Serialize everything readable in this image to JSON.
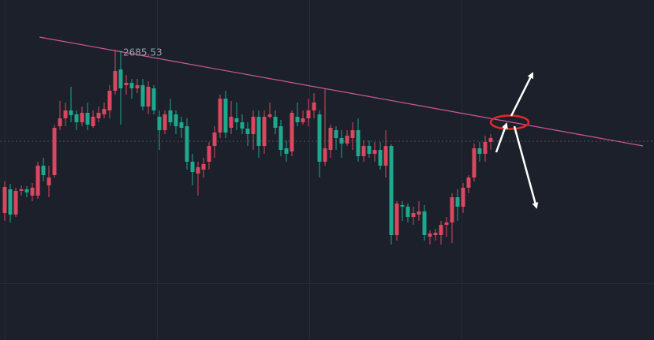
{
  "chart_data": {
    "type": "candlestick",
    "xlim": [
      -0.857,
      117.571
    ],
    "ylim": [
      2317.53,
      2748.53
    ],
    "up_color": "#d9485f",
    "down_color": "#1ea88e",
    "open": [
      2478.53,
      2508.53,
      2476.53,
      2506.53,
      2508.53,
      2500.53,
      2500.53,
      2538.53,
      2513.53,
      2526.53,
      2588.53,
      2598.53,
      2608.53,
      2603.53,
      2593.53,
      2605.53,
      2588.53,
      2598.53,
      2603.53,
      2608.53,
      2633.53,
      2660.53,
      2640.53,
      2643.53,
      2636.53,
      2640.53,
      2613.53,
      2636.53,
      2600.53,
      2583.53,
      2608.53,
      2603.53,
      2593.53,
      2588.53,
      2543.53,
      2528.53,
      2533.53,
      2543.53,
      2563.53,
      2580.53,
      2623.53,
      2586.53,
      2598.53,
      2593.53,
      2585.53,
      2578.53,
      2600.53,
      2563.53,
      2600.53,
      2600.53,
      2588.53,
      2560.53,
      2556.53,
      2600.53,
      2593.53,
      2598.53,
      2608.53,
      2603.53,
      2543.53,
      2558.53,
      2583.53,
      2573.53,
      2566.53,
      2573.53,
      2583.53,
      2550.53,
      2563.53,
      2553.53,
      2558.53,
      2538.53,
      2563.53,
      2450.53,
      2488.53,
      2486.53,
      2473.53,
      2476.53,
      2480.53,
      2448.53,
      2450.53,
      2450.53,
      2463.53,
      2466.53,
      2498.53,
      2486.53,
      2510.53,
      2523.53,
      2560.53,
      2553.53,
      2568.53
    ],
    "high": [
      2518.53,
      2515.53,
      2510.53,
      2513.53,
      2512.53,
      2516.53,
      2543.53,
      2548.53,
      2538.53,
      2590.53,
      2620.53,
      2618.53,
      2638.53,
      2608.53,
      2613.53,
      2618.53,
      2608.53,
      2613.53,
      2618.53,
      2640.53,
      2685.53,
      2683.53,
      2653.53,
      2648.53,
      2648.53,
      2648.53,
      2645.53,
      2640.53,
      2608.53,
      2608.53,
      2623.53,
      2608.53,
      2600.53,
      2598.53,
      2553.53,
      2543.53,
      2548.53,
      2568.53,
      2588.53,
      2628.53,
      2633.53,
      2620.53,
      2618.53,
      2603.53,
      2593.53,
      2608.53,
      2608.53,
      2608.53,
      2618.53,
      2608.53,
      2596.53,
      2570.53,
      2608.53,
      2618.53,
      2608.53,
      2623.53,
      2630.53,
      2608.53,
      2636.53,
      2590.53,
      2588.53,
      2583.53,
      2583.53,
      2593.53,
      2598.53,
      2570.53,
      2570.53,
      2568.53,
      2568.53,
      2583.53,
      2565.53,
      2493.53,
      2493.53,
      2490.53,
      2486.53,
      2493.53,
      2488.53,
      2456.53,
      2458.53,
      2468.53,
      2473.53,
      2503.53,
      2508.53,
      2516.53,
      2526.53,
      2566.53,
      2568.53,
      2576.53,
      2578.53
    ],
    "low": [
      2468.53,
      2466.53,
      2473.53,
      2500.53,
      2498.53,
      2493.53,
      2496.53,
      2518.53,
      2498.53,
      2523.53,
      2583.53,
      2588.53,
      2593.53,
      2583.53,
      2588.53,
      2583.53,
      2586.53,
      2593.53,
      2598.53,
      2598.53,
      2628.53,
      2590.53,
      2628.53,
      2623.53,
      2630.53,
      2608.53,
      2603.53,
      2603.53,
      2558.53,
      2578.53,
      2588.53,
      2578.53,
      2573.53,
      2533.53,
      2513.53,
      2500.53,
      2523.53,
      2533.53,
      2548.53,
      2573.53,
      2573.53,
      2578.53,
      2583.53,
      2578.53,
      2563.53,
      2558.53,
      2548.53,
      2553.53,
      2598.53,
      2578.53,
      2550.53,
      2543.53,
      2550.53,
      2588.53,
      2590.53,
      2588.53,
      2598.53,
      2523.53,
      2538.53,
      2548.53,
      2558.53,
      2548.53,
      2563.53,
      2558.53,
      2543.53,
      2543.53,
      2548.53,
      2543.53,
      2533.53,
      2523.53,
      2438.53,
      2443.53,
      2468.53,
      2466.53,
      2463.53,
      2468.53,
      2443.53,
      2438.53,
      2443.53,
      2438.53,
      2448.53,
      2440.53,
      2468.53,
      2478.53,
      2503.53,
      2518.53,
      2543.53,
      2543.53,
      2558.53
    ],
    "close": [
      2511.53,
      2476.53,
      2506.53,
      2508.53,
      2504.53,
      2510.53,
      2538.53,
      2526.53,
      2523.53,
      2586.53,
      2598.53,
      2608.53,
      2602.53,
      2593.53,
      2605.53,
      2590.53,
      2600.53,
      2605.53,
      2610.53,
      2633.53,
      2658.53,
      2636.53,
      2643.53,
      2636.53,
      2640.53,
      2613.53,
      2638.53,
      2608.53,
      2583.53,
      2603.53,
      2593.53,
      2588.53,
      2586.53,
      2543.53,
      2530.53,
      2536.53,
      2540.53,
      2563.53,
      2580.53,
      2623.53,
      2580.53,
      2600.53,
      2593.53,
      2585.53,
      2578.53,
      2600.53,
      2563.53,
      2600.53,
      2603.53,
      2586.53,
      2558.53,
      2553.53,
      2605.53,
      2593.53,
      2598.53,
      2608.53,
      2618.53,
      2543.53,
      2560.53,
      2586.53,
      2573.53,
      2566.53,
      2576.53,
      2583.53,
      2550.53,
      2563.53,
      2553.53,
      2558.53,
      2538.53,
      2563.53,
      2450.53,
      2490.53,
      2486.53,
      2473.53,
      2478.53,
      2480.53,
      2450.53,
      2452.53,
      2453.53,
      2463.53,
      2466.53,
      2498.53,
      2486.53,
      2510.53,
      2523.53,
      2560.53,
      2553.53,
      2568.53,
      2573.53
    ],
    "trendline": {
      "x": [
        6.286,
        115.571
      ],
      "y": [
        2701.53,
        2563.53
      ],
      "color": "#d2569b"
    },
    "price_line": 2569.53
  }
}
